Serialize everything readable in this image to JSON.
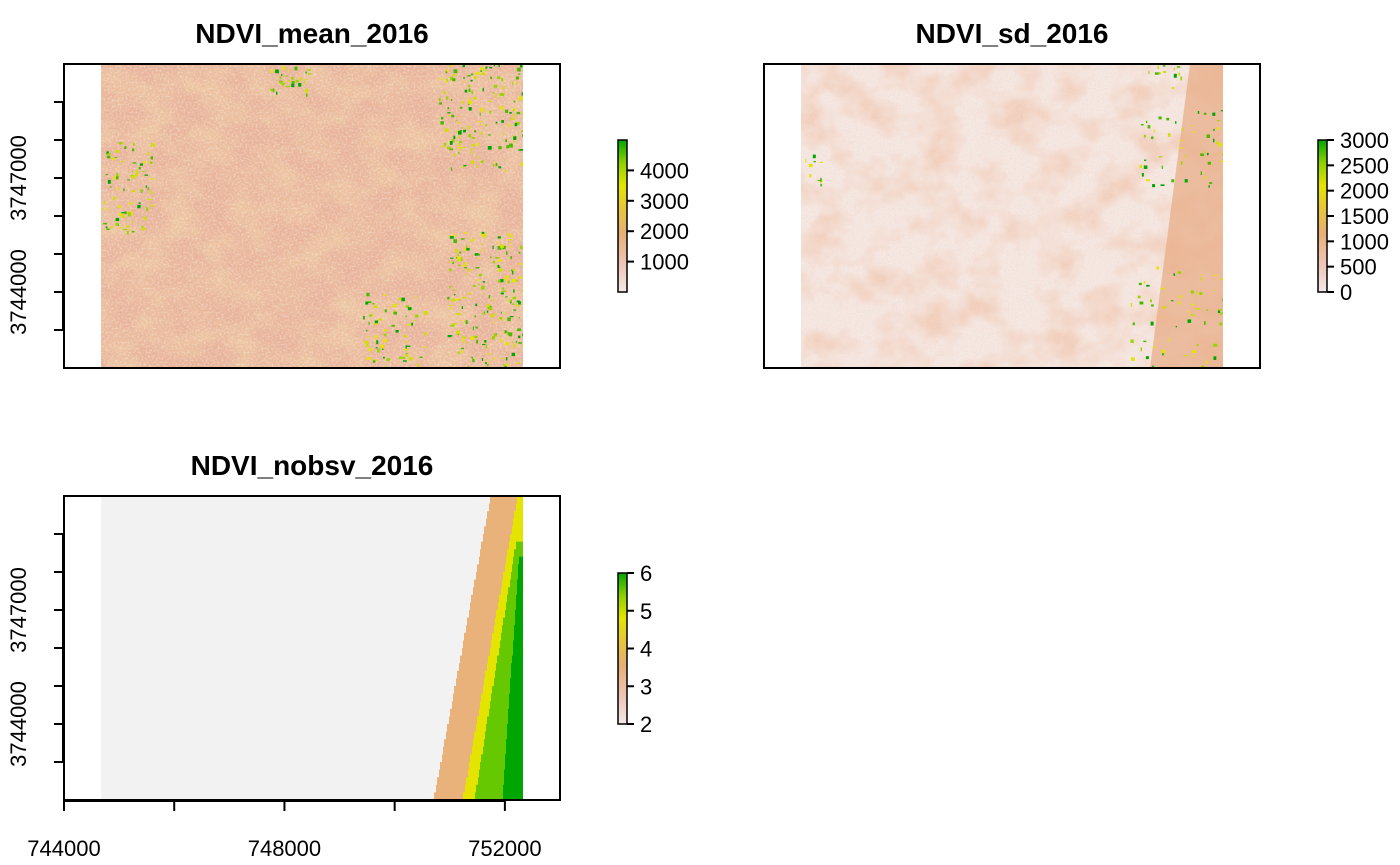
{
  "chart_data": [
    {
      "type": "heatmap",
      "title": "NDVI_mean_2016",
      "xlabel": "",
      "ylabel": "",
      "yticks": [
        "3744000",
        "3747000"
      ],
      "ytick_values": [
        3744000,
        3747000
      ],
      "xticks": [],
      "xlim": [
        744000,
        753000
      ],
      "ylim": [
        3742000,
        3750000
      ],
      "legend": {
        "ticks": [
          "1000",
          "2000",
          "3000",
          "4000"
        ],
        "tick_values": [
          1000,
          2000,
          3000,
          4000
        ],
        "range": [
          0,
          5000
        ],
        "colors": [
          "#f2e8e8",
          "#eec6b8",
          "#e8ae78",
          "#e6c63c",
          "#e4e400",
          "#8ed000",
          "#00a600"
        ]
      }
    },
    {
      "type": "heatmap",
      "title": "NDVI_sd_2016",
      "xlabel": "",
      "ylabel": "",
      "yticks": [],
      "xticks": [],
      "legend": {
        "ticks": [
          "0",
          "500",
          "1000",
          "1500",
          "2000",
          "2500",
          "3000"
        ],
        "tick_values": [
          0,
          500,
          1000,
          1500,
          2000,
          2500,
          3000
        ],
        "range": [
          0,
          3000
        ],
        "colors": [
          "#f2e8e8",
          "#eec6b8",
          "#e8ae78",
          "#e6c63c",
          "#e4e400",
          "#8ed000",
          "#00a600"
        ]
      }
    },
    {
      "type": "heatmap",
      "title": "NDVI_nobsv_2016",
      "xlabel": "",
      "ylabel": "",
      "yticks": [
        "3744000",
        "3747000"
      ],
      "ytick_values": [
        3744000,
        3747000
      ],
      "xticks": [
        "744000",
        "748000",
        "752000"
      ],
      "xtick_values": [
        744000,
        748000,
        752000
      ],
      "xlim": [
        744000,
        753000
      ],
      "ylim": [
        3742000,
        3750000
      ],
      "legend": {
        "ticks": [
          "2",
          "3",
          "4",
          "5",
          "6"
        ],
        "tick_values": [
          2,
          3,
          4,
          5,
          6
        ],
        "range": [
          2,
          6
        ],
        "colors": [
          "#f2e8e8",
          "#eec6b8",
          "#e8ae78",
          "#e6c63c",
          "#e4e400",
          "#8ed000",
          "#00a600"
        ]
      },
      "bands": [
        {
          "value": 2,
          "color": "#f2f2f2"
        },
        {
          "value": 3,
          "color": "#e8b27a"
        },
        {
          "value": 4,
          "color": "#e4e400"
        },
        {
          "value": 5,
          "color": "#66c800"
        },
        {
          "value": 6,
          "color": "#00a600"
        }
      ]
    }
  ]
}
